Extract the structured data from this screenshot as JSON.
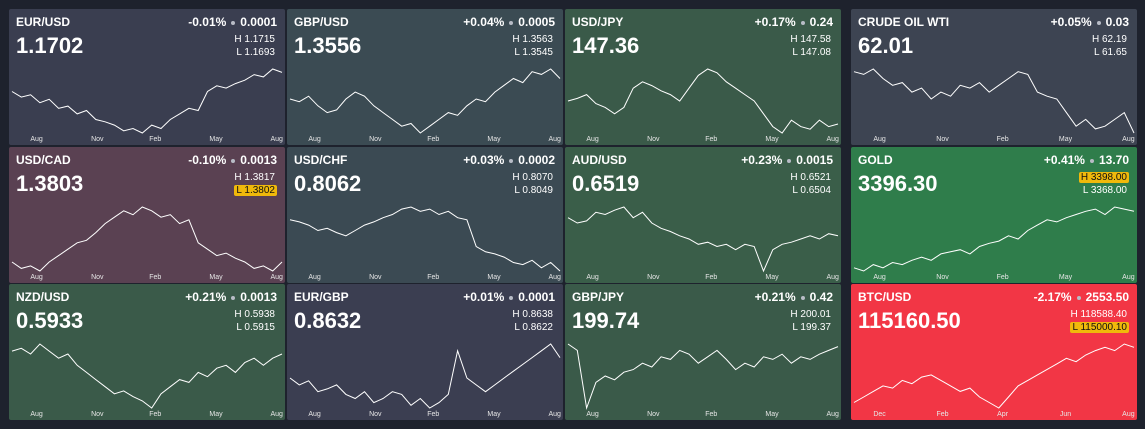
{
  "high_prefix": "H",
  "low_prefix": "L",
  "tiles": [
    {
      "symbol": "EUR/USD",
      "change": "-0.01%",
      "change_abs": "0.0001",
      "price": "1.1702",
      "high": "1.1715",
      "low": "1.1693",
      "highlight": null,
      "color": "#3a3e50",
      "months": [
        "Aug",
        "Nov",
        "Feb",
        "May",
        "Aug"
      ],
      "spark": [
        55,
        50,
        52,
        45,
        48,
        40,
        42,
        35,
        38,
        30,
        28,
        25,
        20,
        22,
        18,
        25,
        22,
        30,
        35,
        40,
        38,
        55,
        60,
        58,
        62,
        65,
        70,
        68,
        75,
        72
      ]
    },
    {
      "symbol": "GBP/USD",
      "change": "+0.04%",
      "change_abs": "0.0005",
      "price": "1.3556",
      "high": "1.3563",
      "low": "1.3545",
      "highlight": null,
      "color": "#3b4b53",
      "months": [
        "Aug",
        "Nov",
        "Feb",
        "May",
        "Aug"
      ],
      "spark": [
        50,
        48,
        52,
        45,
        40,
        42,
        50,
        55,
        52,
        45,
        40,
        35,
        30,
        32,
        25,
        30,
        35,
        40,
        38,
        45,
        50,
        48,
        55,
        60,
        65,
        62,
        70,
        68,
        72,
        65
      ]
    },
    {
      "symbol": "USD/JPY",
      "change": "+0.17%",
      "change_abs": "0.24",
      "price": "147.36",
      "high": "147.58",
      "low": "147.08",
      "highlight": null,
      "color": "#3a5a49",
      "months": [
        "Aug",
        "Nov",
        "Feb",
        "May",
        "Aug"
      ],
      "spark": [
        50,
        52,
        55,
        48,
        45,
        40,
        45,
        60,
        65,
        62,
        58,
        55,
        50,
        60,
        70,
        75,
        72,
        65,
        60,
        55,
        50,
        40,
        30,
        25,
        35,
        30,
        28,
        35,
        30,
        32
      ]
    },
    {
      "symbol": "CRUDE OIL WTI",
      "change": "+0.05%",
      "change_abs": "0.03",
      "price": "62.01",
      "high": "62.19",
      "low": "61.65",
      "highlight": null,
      "color": "#3d4452",
      "months": [
        "Aug",
        "Nov",
        "Feb",
        "May",
        "Aug"
      ],
      "spark": [
        70,
        68,
        72,
        65,
        60,
        62,
        55,
        58,
        50,
        55,
        52,
        60,
        58,
        62,
        55,
        60,
        65,
        70,
        68,
        55,
        52,
        50,
        40,
        30,
        35,
        28,
        30,
        35,
        40,
        25
      ]
    },
    {
      "symbol": "USD/CAD",
      "change": "-0.10%",
      "change_abs": "0.0013",
      "price": "1.3803",
      "high": "1.3817",
      "low": "1.3802",
      "highlight": "low",
      "color": "#5a4152",
      "months": [
        "Aug",
        "Nov",
        "Feb",
        "May",
        "Aug"
      ],
      "spark": [
        25,
        20,
        22,
        18,
        25,
        30,
        35,
        40,
        42,
        48,
        55,
        60,
        65,
        62,
        68,
        65,
        60,
        62,
        55,
        58,
        40,
        35,
        30,
        32,
        28,
        25,
        20,
        22,
        18,
        25
      ]
    },
    {
      "symbol": "USD/CHF",
      "change": "+0.03%",
      "change_abs": "0.0002",
      "price": "0.8062",
      "high": "0.8070",
      "low": "0.8049",
      "highlight": null,
      "color": "#3b4a53",
      "months": [
        "Aug",
        "Nov",
        "Feb",
        "May",
        "Aug"
      ],
      "spark": [
        60,
        58,
        55,
        50,
        52,
        48,
        45,
        50,
        55,
        58,
        62,
        65,
        70,
        72,
        68,
        70,
        65,
        68,
        62,
        60,
        35,
        30,
        28,
        25,
        20,
        18,
        22,
        15,
        20,
        12
      ]
    },
    {
      "symbol": "AUD/USD",
      "change": "+0.23%",
      "change_abs": "0.0015",
      "price": "0.6519",
      "high": "0.6521",
      "low": "0.6504",
      "highlight": null,
      "color": "#3a5e49",
      "months": [
        "Aug",
        "Nov",
        "Feb",
        "May",
        "Aug"
      ],
      "spark": [
        55,
        50,
        52,
        60,
        58,
        62,
        65,
        55,
        60,
        50,
        45,
        42,
        38,
        35,
        30,
        32,
        28,
        30,
        25,
        30,
        28,
        5,
        25,
        30,
        32,
        35,
        38,
        35,
        40,
        38
      ]
    },
    {
      "symbol": "GOLD",
      "change": "+0.41%",
      "change_abs": "13.70",
      "price": "3396.30",
      "high": "3398.00",
      "low": "3368.00",
      "highlight": "high",
      "color": "#2f7d4b",
      "months": [
        "Aug",
        "Nov",
        "Feb",
        "May",
        "Aug"
      ],
      "spark": [
        15,
        12,
        18,
        15,
        20,
        18,
        22,
        25,
        22,
        28,
        30,
        32,
        28,
        35,
        38,
        40,
        45,
        42,
        50,
        55,
        60,
        58,
        62,
        65,
        68,
        70,
        65,
        72,
        70,
        68
      ]
    },
    {
      "symbol": "NZD/USD",
      "change": "+0.21%",
      "change_abs": "0.0013",
      "price": "0.5933",
      "high": "0.5938",
      "low": "0.5915",
      "highlight": null,
      "color": "#3a5a49",
      "months": [
        "Aug",
        "Nov",
        "Feb",
        "May",
        "Aug"
      ],
      "spark": [
        60,
        62,
        58,
        65,
        60,
        55,
        58,
        50,
        45,
        40,
        35,
        30,
        32,
        28,
        25,
        20,
        30,
        35,
        40,
        38,
        45,
        42,
        48,
        50,
        45,
        52,
        55,
        50,
        55,
        58
      ]
    },
    {
      "symbol": "EUR/GBP",
      "change": "+0.01%",
      "change_abs": "0.0001",
      "price": "0.8632",
      "high": "0.8638",
      "low": "0.8622",
      "highlight": null,
      "color": "#3b3e51",
      "months": [
        "Aug",
        "Nov",
        "Feb",
        "May",
        "Aug"
      ],
      "spark": [
        40,
        35,
        38,
        30,
        32,
        35,
        28,
        25,
        30,
        22,
        25,
        30,
        28,
        20,
        25,
        18,
        22,
        28,
        60,
        40,
        35,
        30,
        35,
        40,
        45,
        50,
        55,
        60,
        65,
        55
      ]
    },
    {
      "symbol": "GBP/JPY",
      "change": "+0.21%",
      "change_abs": "0.42",
      "price": "199.74",
      "high": "200.01",
      "low": "199.37",
      "highlight": null,
      "color": "#3a5a49",
      "months": [
        "Aug",
        "Nov",
        "Feb",
        "May",
        "Aug"
      ],
      "spark": [
        60,
        55,
        10,
        30,
        35,
        32,
        38,
        40,
        45,
        42,
        50,
        48,
        55,
        52,
        45,
        50,
        55,
        48,
        40,
        45,
        42,
        50,
        48,
        52,
        45,
        50,
        48,
        52,
        55,
        58
      ]
    },
    {
      "symbol": "BTC/USD",
      "change": "-2.17%",
      "change_abs": "2553.50",
      "price": "115160.50",
      "high": "118588.40",
      "low": "115000.10",
      "highlight": "low",
      "color": "#f23645",
      "months": [
        "Dec",
        "Feb",
        "Apr",
        "Jun",
        "Aug"
      ],
      "spark": [
        15,
        20,
        25,
        30,
        28,
        35,
        32,
        38,
        40,
        35,
        30,
        25,
        28,
        20,
        15,
        10,
        20,
        30,
        35,
        40,
        45,
        50,
        55,
        52,
        58,
        62,
        65,
        62,
        68,
        65
      ]
    }
  ]
}
